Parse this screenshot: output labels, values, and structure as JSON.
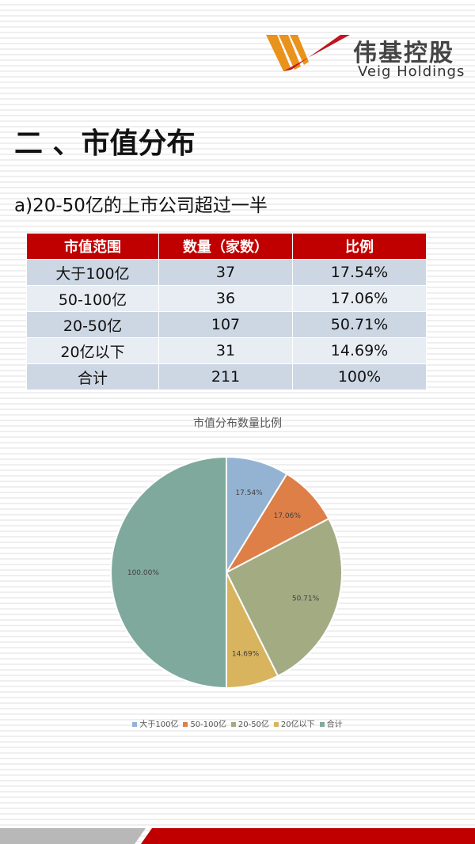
{
  "brand": {
    "name_cn": "伟基控股",
    "name_en": "Veig Holdings"
  },
  "section_title": "二 、市值分布",
  "sub_title": "a)20-50亿的上市公司超过一半",
  "table": {
    "headers": [
      "市值范围",
      "数量（家数）",
      "比例"
    ],
    "rows": [
      [
        "大于100亿",
        "37",
        "17.54%"
      ],
      [
        "50-100亿",
        "36",
        "17.06%"
      ],
      [
        "20-50亿",
        "107",
        "50.71%"
      ],
      [
        "20亿以下",
        "31",
        "14.69%"
      ],
      [
        "合计",
        "211",
        "100%"
      ]
    ]
  },
  "chart_data": {
    "type": "pie",
    "title": "市值分布数量比例",
    "categories": [
      "大于100亿",
      "50-100亿",
      "20-50亿",
      "20亿以下",
      "合计"
    ],
    "values": [
      17.54,
      17.06,
      50.71,
      14.69,
      100.0
    ],
    "labels": [
      "17.54%",
      "17.06%",
      "50.71%",
      "14.69%",
      "100.00%"
    ],
    "colors": [
      "#94b3d3",
      "#de7f48",
      "#a3ab83",
      "#d8b45e",
      "#7fa99c"
    ],
    "legend_position": "bottom"
  },
  "colors": {
    "header_red": "#c00000",
    "row_odd": "#cdd7e4",
    "row_even": "#e8edf3"
  }
}
